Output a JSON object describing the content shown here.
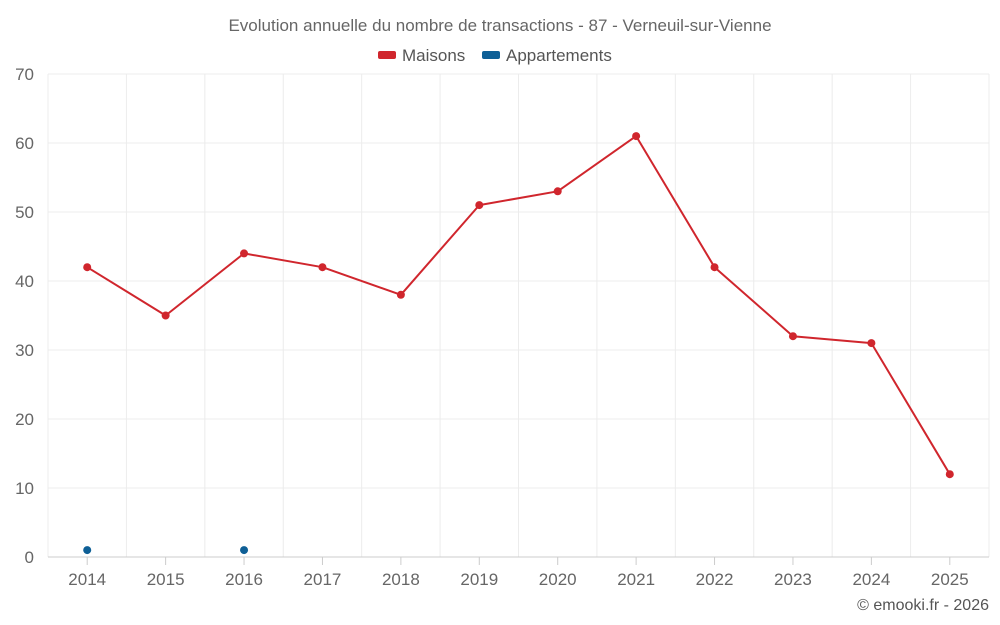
{
  "chart_data": {
    "type": "line",
    "title": "Evolution annuelle du nombre de transactions - 87 - Verneuil-sur-Vienne",
    "xlabel": "",
    "ylabel": "",
    "categories": [
      "2014",
      "2015",
      "2016",
      "2017",
      "2018",
      "2019",
      "2020",
      "2021",
      "2022",
      "2023",
      "2024",
      "2025"
    ],
    "ylim": [
      0,
      70
    ],
    "yticks": [
      0,
      10,
      20,
      30,
      40,
      50,
      60,
      70
    ],
    "grid": true,
    "legend_position": "top-center",
    "series": [
      {
        "name": "Maisons",
        "color": "#d0262d",
        "values": [
          42,
          35,
          44,
          42,
          38,
          51,
          53,
          61,
          42,
          32,
          31,
          12
        ]
      },
      {
        "name": "Appartements",
        "color": "#0e5f96",
        "values": [
          1,
          null,
          1,
          null,
          null,
          null,
          null,
          null,
          null,
          null,
          null,
          null
        ]
      }
    ]
  },
  "credit": "© emooki.fr - 2026"
}
